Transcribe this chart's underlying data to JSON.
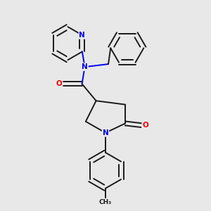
{
  "bg_color": "#e8e8e8",
  "bond_color": "#1a1a1a",
  "N_color": "#0000ee",
  "O_color": "#ee0000",
  "lw": 1.4,
  "figsize": [
    3.0,
    3.0
  ],
  "dpi": 100,
  "xlim": [
    0,
    10
  ],
  "ylim": [
    0,
    11
  ]
}
